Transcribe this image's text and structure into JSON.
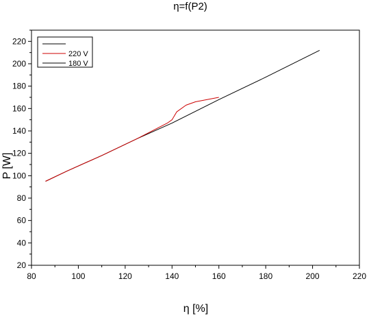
{
  "chart_data": {
    "type": "line",
    "title": "η=f(P2)",
    "xlabel": "η [%]",
    "ylabel": "P [W]",
    "xlim": [
      80,
      220
    ],
    "ylim": [
      20,
      230
    ],
    "xticks": [
      80,
      100,
      120,
      140,
      160,
      180,
      200,
      220
    ],
    "yticks": [
      20,
      40,
      60,
      80,
      100,
      120,
      140,
      160,
      180,
      200,
      220
    ],
    "legend_position": "top-left",
    "legend_entries": [
      "",
      "220 V",
      "180 V"
    ],
    "series": [
      {
        "name": "180 V",
        "color": "#000000",
        "x": [
          86,
          95,
          110,
          125,
          140,
          160,
          180,
          203
        ],
        "y": [
          95,
          104,
          118,
          133,
          147,
          168,
          188,
          212
        ]
      },
      {
        "name": "220 V",
        "color": "#cc0000",
        "x": [
          86,
          95,
          110,
          125,
          138,
          140,
          142,
          146,
          150,
          155,
          160
        ],
        "y": [
          95,
          104,
          118,
          133,
          147,
          150,
          157,
          163,
          166,
          168,
          170
        ]
      }
    ]
  }
}
